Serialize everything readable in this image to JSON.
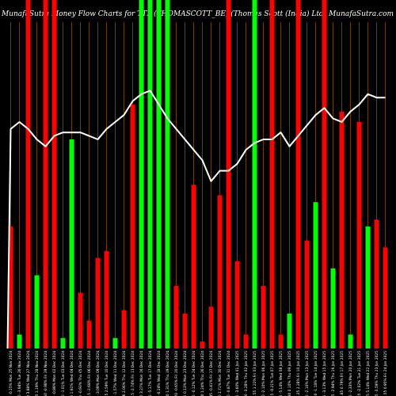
{
  "title": "MunafaSutra  Money Flow  Charts for TTL (THOMASCOTT_BE)    (Thomas Scott   (India) Ltd) MunafaSutra.com",
  "colors": {
    "background": "#000000",
    "up": "#00ff00",
    "down": "#ff0000",
    "line": "#ffffff",
    "grid": "#b36b00"
  },
  "chart_data": {
    "type": "bar",
    "title": "MunafaSutra  Money Flow  Charts for TTL (THOMASCOTT_BE)    (Thomas Scott   (India) Ltd) MunafaSutra.com",
    "grid": true,
    "ylim": [
      0,
      100
    ],
    "categories": [
      "Fri 24 Jan 2025",
      "Thu 23 Jan 2025",
      "Wed 22 Jan 2025",
      "Tue 21 Jan 2025",
      "Mon 20 Jan 2025",
      "Fri 17 Jan 2025",
      "Thu 16 Jan 2025",
      "Wed 15 Jan 2025",
      "Tue 14 Jan 2025",
      "Mon 13 Jan 2025",
      "Fri 10 Jan 2025",
      "Thu 09 Jan 2025",
      "Wed 08 Jan 2025",
      "Tue 07 Jan 2025",
      "Mon 06 Jan 2025",
      "Fri 03 Jan 2025",
      "Thu 02 Jan 2025",
      "Wed 01 Jan 2025",
      "Tue 31 Dec 2024",
      "Mon 30 Dec 2024",
      "Fri 27 Dec 2024",
      "Thu 26 Dec 2024",
      "Tue 24 Dec 2024",
      "Mon 23 Dec 2024",
      "Fri 20 Dec 2024",
      "Thu 19 Dec 2024",
      "Wed 18 Dec 2024",
      "Tue 17 Dec 2024",
      "Mon 16 Dec 2024",
      "Fri 13 Dec 2024",
      "Thu 12 Dec 2024",
      "Wed 11 Dec 2024",
      "Tue 10 Dec 2024",
      "Mon 09 Dec 2024",
      "Fri 06 Dec 2024",
      "Thu 05 Dec 2024",
      "Wed 04 Dec 2024",
      "Tue 03 Dec 2024",
      "Mon 02 Dec 2024",
      "Fri 29 Nov 2024",
      "Thu 28 Nov 2024",
      "Wed 27 Nov 2024",
      "Tue 26 Nov 2024",
      "Mon 25 Nov 2024"
    ],
    "tick_labels": [
      "344.55 0.95%",
      "330.45 -3.59%",
      "343.55 5.14%",
      "350.35 -2.02%",
      "356.15 -2.33%",
      "360.85 0.79%",
      "370.85 -2.94%",
      "380.35 -3.13%",
      "387.50 -1.18%",
      "398.55 -2.10%",
      "399.25 2.28%",
      "415.30 0.10%",
      "425.55 -5.14%",
      "424.45 -0.21%",
      "434.30 -2.10%",
      "445.55 1.22%",
      "458.70 -3.28%",
      "470.00 -3.60%",
      "474.10 -0.87%",
      "465.00 1.71%",
      "479.45 -0.41%",
      "459.80 1.24%",
      "466.35 -0.12%",
      "456.25 0.13%",
      "461.20 -0.65%",
      "457.90 1.31%",
      "445.00 -0.24%",
      "426.55 -5.17%",
      "440.50 3.27%",
      "445.15 -2.74%",
      "471.16 2.06%",
      "439.40 -1.57%",
      "431.25 2.59%",
      "425.50 -3.09%",
      "431.15 -2.68%",
      "425.30 -0.93%",
      "429.95 1.81%",
      "425.40 -1.01%",
      "440.40 -0.89%",
      "434.50 -0.98%",
      "439.75 1.19%",
      "425.00 3.88%",
      "436.60 -3.94%",
      "456.35 -0.15%"
    ],
    "series": [
      {
        "values": [
          29,
          37,
          35,
          65,
          4,
          68,
          23,
          100,
          42,
          31,
          100,
          10,
          4,
          100,
          18,
          100,
          4,
          25,
          100,
          44,
          12,
          2,
          47,
          10,
          18,
          100,
          100,
          100,
          100,
          70,
          11,
          3,
          28,
          26,
          8,
          16,
          60,
          3,
          100,
          100,
          21,
          100,
          4,
          35
        ],
        "colors": [
          "red",
          "red",
          "green",
          "red",
          "green",
          "red",
          "green",
          "red",
          "green",
          "red",
          "red",
          "green",
          "red",
          "red",
          "red",
          "green",
          "red",
          "red",
          "red",
          "red",
          "red",
          "red",
          "red",
          "red",
          "red",
          "green",
          "green",
          "green",
          "green",
          "red",
          "red",
          "green",
          "red",
          "red",
          "red",
          "red",
          "green",
          "green",
          "red",
          "red",
          "green",
          "red",
          "green",
          "red"
        ]
      },
      {
        "values": [
          72,
          72,
          73,
          70,
          68,
          65,
          66,
          69,
          67,
          64,
          61,
          58,
          62,
          60,
          60,
          59,
          57,
          53,
          51,
          51,
          48,
          54,
          57,
          60,
          63,
          66,
          70,
          74,
          73,
          71,
          67,
          65,
          63,
          60,
          61,
          62,
          62,
          62,
          61,
          58,
          60,
          63,
          65,
          63
        ]
      }
    ]
  }
}
